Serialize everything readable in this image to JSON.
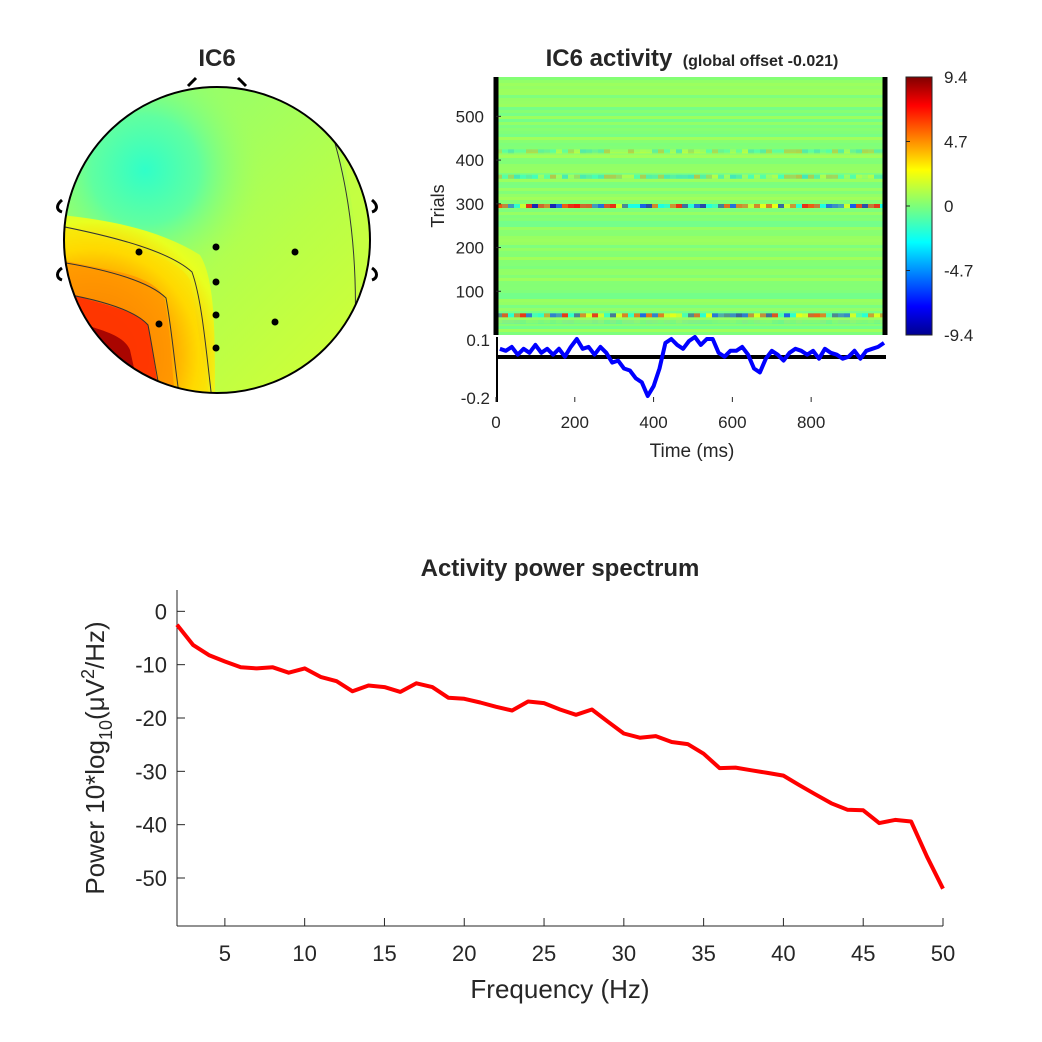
{
  "colors": {
    "background": "#ffffff",
    "axis": "#262626",
    "spectrum_line": "#ff0000",
    "erp_line": "#0000ff",
    "electrode": "#000000",
    "colormap": "jet"
  },
  "chart_data": [
    {
      "type": "heatmap",
      "id": "topoplot",
      "title": "IC6",
      "electrodes_count": 9,
      "colormap": "jet",
      "grid": false
    },
    {
      "type": "heatmap",
      "id": "erp-image",
      "title": "IC6 activity",
      "subtitle": "(global offset -0.021)",
      "ylabel": "Trials",
      "xlabel": "Time (ms)",
      "xlim": [
        0,
        990
      ],
      "ylim": [
        0,
        590
      ],
      "xticks": [
        "0",
        "200",
        "400",
        "600",
        "800"
      ],
      "yticks": [
        "100",
        "200",
        "300",
        "400",
        "500"
      ],
      "colorbar": {
        "ticks": [
          "9.4",
          "4.7",
          "0",
          "-4.7",
          "-9.4"
        ],
        "range": [
          -9.4,
          9.4
        ]
      },
      "trace": {
        "ylim": [
          -0.2,
          0.1
        ],
        "yticks": [
          "0.1",
          "-0.2"
        ],
        "x": [
          10,
          25,
          40,
          55,
          70,
          85,
          100,
          115,
          130,
          145,
          160,
          175,
          190,
          205,
          220,
          235,
          250,
          265,
          280,
          295,
          310,
          325,
          340,
          355,
          370,
          385,
          400,
          415,
          430,
          445,
          460,
          475,
          490,
          505,
          520,
          535,
          550,
          565,
          580,
          595,
          610,
          625,
          640,
          655,
          670,
          685,
          700,
          715,
          730,
          745,
          760,
          775,
          790,
          805,
          820,
          835,
          850,
          865,
          880,
          895,
          910,
          925,
          940,
          955,
          970,
          985
        ],
        "y": [
          0.05,
          0.04,
          0.06,
          0.02,
          0.05,
          0.03,
          0.07,
          0.03,
          0.05,
          0.02,
          0.05,
          0.01,
          0.06,
          0.1,
          0.05,
          0.06,
          0.02,
          0.06,
          0.03,
          -0.02,
          -0.01,
          -0.05,
          -0.06,
          -0.1,
          -0.12,
          -0.19,
          -0.14,
          -0.05,
          0.08,
          0.1,
          0.07,
          0.05,
          0.09,
          0.11,
          0.07,
          0.1,
          0.1,
          0.03,
          0.01,
          0.04,
          0.04,
          0.06,
          0.02,
          -0.05,
          -0.07,
          0.0,
          0.04,
          0.02,
          -0.01,
          0.03,
          0.05,
          0.04,
          0.02,
          0.04,
          0.0,
          0.05,
          0.03,
          0.02,
          0.0,
          0.01,
          0.04,
          0.0,
          0.04,
          0.05,
          0.06,
          0.08
        ]
      },
      "highlight_bands": [
        {
          "trial": 420,
          "pattern": "mixed",
          "intensity": 0.35
        },
        {
          "trial": 362,
          "pattern": "mixed",
          "intensity": 0.45
        },
        {
          "trial": 295,
          "pattern": "mixed-strong",
          "intensity": 0.9
        },
        {
          "trial": 45,
          "pattern": "mixed-strong",
          "intensity": 0.8
        },
        {
          "trial": 30,
          "pattern": "blue",
          "intensity": 0.25
        }
      ]
    },
    {
      "type": "line",
      "id": "power-spectrum",
      "title": "Activity power spectrum",
      "xlabel": "Frequency (Hz)",
      "ylabel_parts": [
        "Power 10*log",
        "10",
        "(μV",
        "2",
        "/Hz)"
      ],
      "xlim": [
        2,
        50
      ],
      "ylim": [
        -59,
        4
      ],
      "xticks": [
        5,
        10,
        15,
        20,
        25,
        30,
        35,
        40,
        45,
        50
      ],
      "yticks": [
        0,
        -10,
        -20,
        -30,
        -40,
        -50
      ],
      "grid": false,
      "series": [
        {
          "x": [
            2,
            3,
            4,
            5,
            6,
            7,
            8,
            9,
            10,
            11,
            12,
            13,
            14,
            15,
            16,
            17,
            18,
            19,
            20,
            21,
            22,
            23,
            24,
            25,
            26,
            27,
            28,
            29,
            30,
            31,
            32,
            33,
            34,
            35,
            36,
            37,
            38,
            39,
            40,
            41,
            42,
            43,
            44,
            45,
            46,
            47,
            48,
            49,
            50
          ],
          "values": [
            -2.5,
            -6.3,
            -8.2,
            -9.4,
            -10.5,
            -10.7,
            -10.5,
            -11.5,
            -10.7,
            -12.3,
            -13.1,
            -15.0,
            -13.9,
            -14.2,
            -15.1,
            -13.5,
            -14.2,
            -16.2,
            -16.4,
            -17.1,
            -17.9,
            -18.6,
            -16.9,
            -17.2,
            -18.4,
            -19.4,
            -18.4,
            -20.7,
            -22.9,
            -23.7,
            -23.4,
            -24.5,
            -24.9,
            -26.7,
            -29.4,
            -29.3,
            -29.8,
            -30.3,
            -30.8,
            -32.6,
            -34.3,
            -36.0,
            -37.2,
            -37.3,
            -39.7,
            -39.1,
            -39.4,
            -46.0,
            -52.0
          ]
        }
      ]
    }
  ]
}
